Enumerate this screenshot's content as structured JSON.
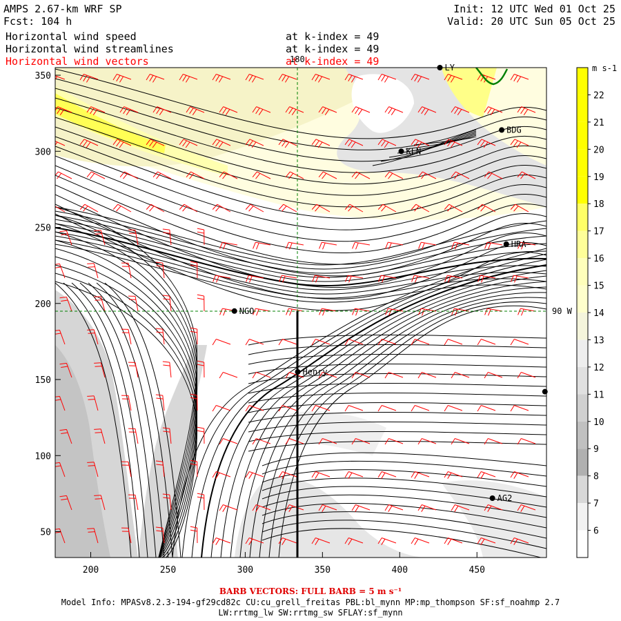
{
  "header": {
    "model": "AMPS 2.67-km WRF SP",
    "forecast": "Fcst: 104 h",
    "init": "Init: 12 UTC Wed 01 Oct 25",
    "valid": "Valid: 20 UTC Sun 05 Oct 25",
    "fields": [
      {
        "label": "Horizontal wind speed",
        "level": "at k-index = 49",
        "color": "#000000"
      },
      {
        "label": "Horizontal wind streamlines",
        "level": "at k-index = 49",
        "color": "#000000"
      },
      {
        "label": "Horizontal wind vectors",
        "level": "at k-index = 49",
        "color": "#ff0000"
      }
    ]
  },
  "axes": {
    "x_ticks": [
      "200",
      "250",
      "300",
      "350",
      "400",
      "450"
    ],
    "y_ticks": [
      "50",
      "100",
      "150",
      "200",
      "250",
      "300",
      "350"
    ],
    "x_range": [
      177,
      495
    ],
    "y_range": [
      33,
      355
    ]
  },
  "grid_labels": {
    "meridian": "180",
    "parallel": "90 W"
  },
  "stations": [
    {
      "id": "LY",
      "x": 426,
      "y": 355
    },
    {
      "id": "BDG",
      "x": 466,
      "y": 314
    },
    {
      "id": "KLN",
      "x": 401,
      "y": 300
    },
    {
      "id": "HRA",
      "x": 469,
      "y": 239
    },
    {
      "id": "NGO",
      "x": 293,
      "y": 195
    },
    {
      "id": "Henry",
      "x": 334,
      "y": 155
    },
    {
      "id": "",
      "x": 494,
      "y": 142
    },
    {
      "id": "AG2",
      "x": 460,
      "y": 72
    }
  ],
  "colorbar": {
    "unit": "m s-1",
    "labels": [
      "22",
      "21",
      "20",
      "19",
      "18",
      "17",
      "16",
      "15",
      "14",
      "13",
      "12",
      "11",
      "10",
      "9",
      "8",
      "7",
      "6"
    ],
    "colors": [
      "#ffff00",
      "#ffff00",
      "#ffff00",
      "#ffff00",
      "#ffff00",
      "#ffff66",
      "#ffff99",
      "#ffffbb",
      "#ffffcc",
      "#f5f5dc",
      "#eeeeee",
      "#e0e0e0",
      "#d0d0d0",
      "#c0c0c0",
      "#b0b0b0",
      "#d8d8d8",
      "#f2f2f2",
      "#ffffff"
    ]
  },
  "footer": {
    "barb_note": "BARB VECTORS: FULL BARB = 5 m s⁻¹",
    "model_info": "Model Info: MPASv8.2.3-194-gf29cd82c CU:cu_grell_freitas PBL:bl_mynn MP:mp_thompson SF:sf_noahmp 2.7",
    "model_info_2": "LW:rrtmg_lw SW:rrtmg_sw SFLAY:sf_mynn"
  }
}
